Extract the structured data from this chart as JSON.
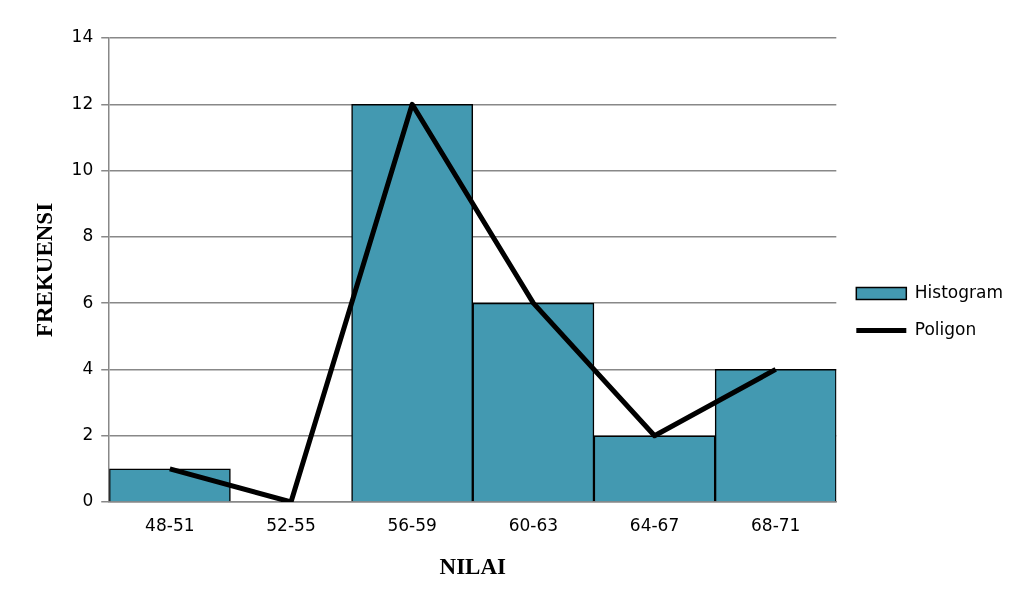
{
  "chart_data": {
    "type": "bar",
    "categories": [
      "48-51",
      "52-55",
      "56-59",
      "60-63",
      "64-67",
      "68-71"
    ],
    "series": [
      {
        "name": "Histogram",
        "color": "#4399b1",
        "values": [
          1,
          0,
          12,
          6,
          2,
          4
        ]
      },
      {
        "name": "Poligon",
        "type": "line",
        "color": "#000000",
        "values": [
          1,
          0,
          12,
          6,
          2,
          4
        ]
      }
    ],
    "xlabel": "NILAI",
    "ylabel": "FREKUENSI",
    "ylim": [
      0,
      14
    ],
    "yticks": [
      0,
      2,
      4,
      6,
      8,
      10,
      12,
      14
    ],
    "grid": "y",
    "legend": "right",
    "marker": "none"
  }
}
